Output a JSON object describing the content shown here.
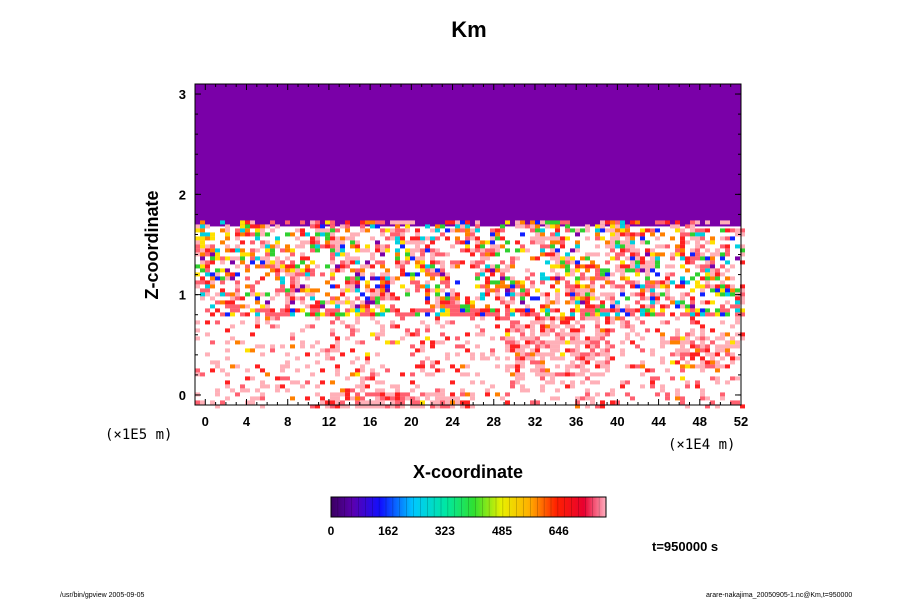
{
  "chart_data": {
    "type": "heatmap",
    "title": "Km",
    "xlabel": "X-coordinate",
    "ylabel": "Z-coordinate",
    "x_unit": "(×1E4 m)",
    "z_unit": "(×1E5 m)",
    "xlim": [
      -1,
      52
    ],
    "ylim": [
      -0.1,
      3.1
    ],
    "x_ticks": [
      0,
      4,
      8,
      12,
      16,
      20,
      24,
      28,
      32,
      36,
      40,
      44,
      48,
      52
    ],
    "y_ticks": [
      0,
      1,
      2,
      3
    ],
    "colorbar": {
      "ticks": [
        "0",
        "162",
        "323",
        "485",
        "646"
      ],
      "tick_values": [
        0,
        162,
        323,
        485,
        646
      ],
      "max": 780
    },
    "time_label": "t=950000 s",
    "colors": {
      "upper_region": "#7a00a8",
      "background": "#ffffff"
    },
    "regions": [
      {
        "name": "upper-uniform",
        "z_range": [
          1.72,
          3.1
        ],
        "value": 0
      },
      {
        "name": "turbulent-layer",
        "z_range": [
          0.9,
          1.72
        ]
      },
      {
        "name": "lower-boundary-layer",
        "z_range": [
          -0.1,
          0.85
        ]
      }
    ]
  },
  "footer": {
    "left": "/usr/bin/gpview 2005-09-05",
    "right": "arare-nakajima_20050905-1.nc@Km,t=950000"
  }
}
